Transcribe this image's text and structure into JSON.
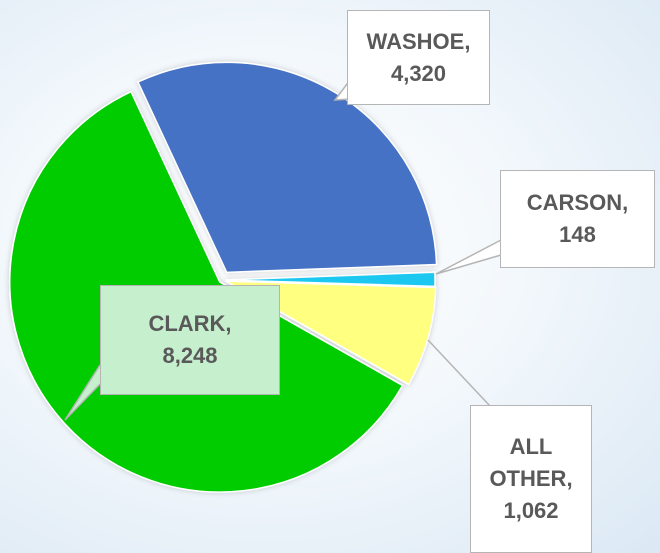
{
  "chart_data": {
    "type": "pie",
    "categories": [
      "WASHOE,",
      "CARSON,",
      "ALL OTHER,",
      "CLARK,"
    ],
    "values": [
      4320,
      148,
      1062,
      8248
    ],
    "value_labels": [
      "4,320",
      "148",
      "1,062",
      "8,248"
    ],
    "colors": [
      "#4472c4",
      "#1fc8f0",
      "#ffff80",
      "#00cc00"
    ]
  }
}
